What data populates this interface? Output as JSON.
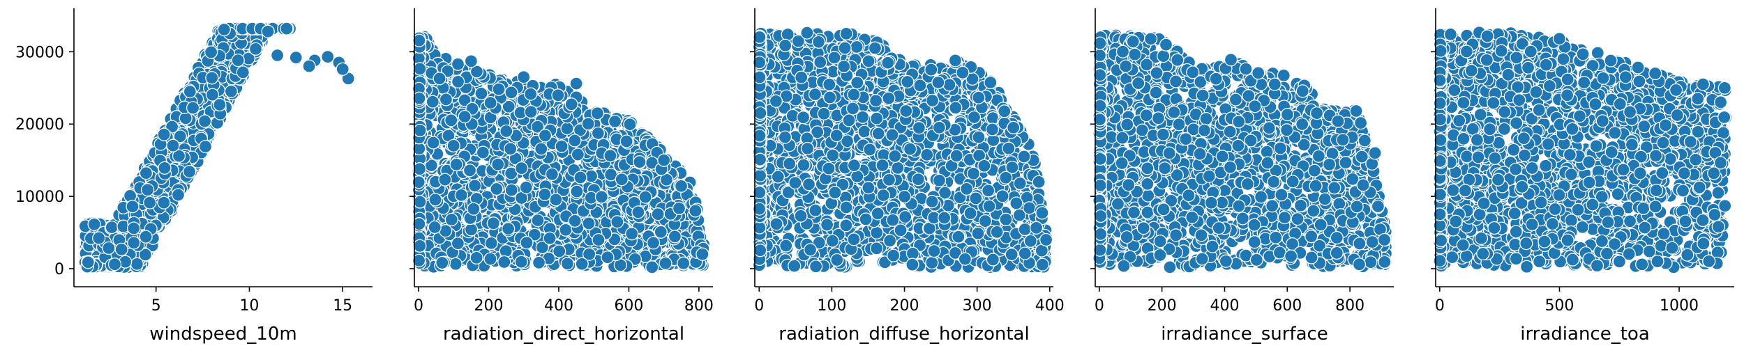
{
  "chart_data": [
    {
      "type": "scatter",
      "xlabel": "windspeed_10m",
      "ylabel": "",
      "xlim": [
        0.6,
        16.6
      ],
      "ylim": [
        -2500,
        36000
      ],
      "x_ticks": [
        5,
        10,
        15
      ],
      "y_ticks": [
        0,
        10000,
        20000,
        30000
      ],
      "color": "#1f77b4",
      "grid": false,
      "shape": "band",
      "x_range": [
        1.2,
        15.7
      ],
      "y_max_range": [
        0,
        33200
      ],
      "upper_cap": 33200,
      "points": [
        [
          11.5,
          29500
        ],
        [
          12.5,
          29200
        ],
        [
          13.5,
          28800
        ],
        [
          14.2,
          29300
        ],
        [
          14.8,
          28500
        ],
        [
          15.3,
          26300
        ],
        [
          15.0,
          27600
        ],
        [
          13.2,
          28000
        ],
        [
          12.0,
          33200
        ],
        [
          11.0,
          32800
        ]
      ]
    },
    {
      "type": "scatter",
      "xlabel": "radiation_direct_horizontal",
      "ylabel": "",
      "xlim": [
        -12,
        840
      ],
      "ylim": [
        -2500,
        36000
      ],
      "x_ticks": [
        0,
        200,
        400,
        600,
        800
      ],
      "y_ticks": [
        0,
        10000,
        20000,
        30000
      ],
      "color": "#1f77b4",
      "grid": false,
      "shape": "decay",
      "x_range": [
        0,
        815
      ],
      "envelope": [
        [
          0,
          32800
        ],
        [
          100,
          28500
        ],
        [
          250,
          26000
        ],
        [
          400,
          25500
        ],
        [
          500,
          22000
        ],
        [
          600,
          21000
        ],
        [
          700,
          16000
        ],
        [
          780,
          12000
        ],
        [
          815,
          3000
        ]
      ],
      "points": [
        [
          450,
          25600
        ],
        [
          700,
          15000
        ],
        [
          790,
          8000
        ],
        [
          810,
          2000
        ],
        [
          300,
          26500
        ],
        [
          150,
          28700
        ]
      ]
    },
    {
      "type": "scatter",
      "xlabel": "radiation_diffuse_horizontal",
      "ylabel": "",
      "xlim": [
        -6,
        405
      ],
      "ylim": [
        -2500,
        36000
      ],
      "x_ticks": [
        0,
        100,
        200,
        300,
        400
      ],
      "y_ticks": [
        0,
        10000,
        20000,
        30000
      ],
      "color": "#1f77b4",
      "grid": false,
      "shape": "decay",
      "x_range": [
        0,
        395
      ],
      "envelope": [
        [
          0,
          32800
        ],
        [
          150,
          32500
        ],
        [
          200,
          28500
        ],
        [
          280,
          29000
        ],
        [
          320,
          26000
        ],
        [
          360,
          20000
        ],
        [
          380,
          15000
        ],
        [
          395,
          5000
        ]
      ],
      "points": [
        [
          270,
          28800
        ],
        [
          350,
          19500
        ],
        [
          385,
          12000
        ],
        [
          395,
          4000
        ],
        [
          120,
          32500
        ]
      ]
    },
    {
      "type": "scatter",
      "xlabel": "irradiance_surface",
      "ylabel": "",
      "xlim": [
        -13,
        940
      ],
      "ylim": [
        -2500,
        36000
      ],
      "x_ticks": [
        0,
        200,
        400,
        600,
        800
      ],
      "y_ticks": [
        0,
        10000,
        20000,
        30000
      ],
      "color": "#1f77b4",
      "grid": false,
      "shape": "decay",
      "x_range": [
        0,
        915
      ],
      "envelope": [
        [
          0,
          32800
        ],
        [
          200,
          32000
        ],
        [
          300,
          28000
        ],
        [
          500,
          28500
        ],
        [
          650,
          25500
        ],
        [
          750,
          22000
        ],
        [
          820,
          22000
        ],
        [
          870,
          16000
        ],
        [
          915,
          5000
        ]
      ],
      "points": [
        [
          560,
          25500
        ],
        [
          820,
          21800
        ],
        [
          880,
          16000
        ],
        [
          910,
          4000
        ],
        [
          420,
          28900
        ]
      ]
    },
    {
      "type": "scatter",
      "xlabel": "irradiance_toa",
      "ylabel": "",
      "xlim": [
        -17,
        1230
      ],
      "ylim": [
        -2500,
        36000
      ],
      "x_ticks": [
        0,
        500,
        1000
      ],
      "y_ticks": [
        0,
        10000,
        20000,
        30000
      ],
      "color": "#1f77b4",
      "grid": false,
      "shape": "decay",
      "x_range": [
        0,
        1195
      ],
      "envelope": [
        [
          0,
          32800
        ],
        [
          400,
          32500
        ],
        [
          600,
          30500
        ],
        [
          800,
          28500
        ],
        [
          1000,
          26000
        ],
        [
          1195,
          25000
        ]
      ],
      "points": [
        [
          1100,
          25500
        ],
        [
          1190,
          25000
        ],
        [
          500,
          31800
        ],
        [
          900,
          27000
        ]
      ]
    }
  ]
}
